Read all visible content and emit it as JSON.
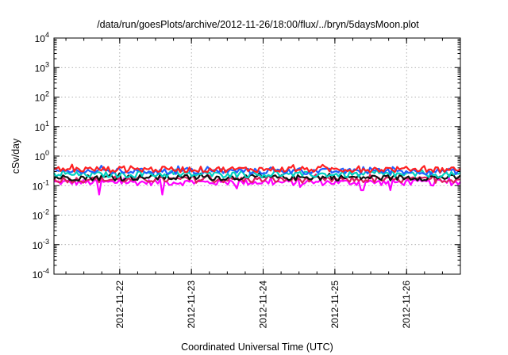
{
  "chart_data": {
    "type": "line",
    "title": "/data/run/goesPlots/archive/2012-11-26/18:00/flux/../bryn/5daysMoon.plot",
    "xlabel": "Coordinated Universal Time (UTC)",
    "ylabel": "cSv/day",
    "yscale": "log",
    "ylim": [
      0.0001,
      10000
    ],
    "y_ticks": [
      {
        "base": "10",
        "exp": "4",
        "value": 10000
      },
      {
        "base": "10",
        "exp": "3",
        "value": 1000
      },
      {
        "base": "10",
        "exp": "2",
        "value": 100
      },
      {
        "base": "10",
        "exp": "1",
        "value": 10
      },
      {
        "base": "10",
        "exp": "0",
        "value": 1
      },
      {
        "base": "10",
        "exp": "-1",
        "value": 0.1
      },
      {
        "base": "10",
        "exp": "-2",
        "value": 0.01
      },
      {
        "base": "10",
        "exp": "-3",
        "value": 0.001
      },
      {
        "base": "10",
        "exp": "-4",
        "value": 0.0001
      }
    ],
    "xlim": [
      "2012-11-21T02:00",
      "2012-11-26T18:00"
    ],
    "x_ticks": [
      "2012-11-22",
      "2012-11-23",
      "2012-11-24",
      "2012-11-25",
      "2012-11-26"
    ],
    "grid": true,
    "series": [
      {
        "color": "#ff00ff",
        "level": 0.13,
        "dips": [
          [
            0.62,
            0.05
          ],
          [
            1.52,
            0.05
          ],
          [
            2.55,
            0.08
          ],
          [
            3.42,
            0.09
          ],
          [
            4.3,
            0.07
          ],
          [
            4.68,
            0.07
          ],
          [
            5.3,
            0.1
          ]
        ]
      },
      {
        "color": "#e0205f",
        "level": 0.16,
        "dips": []
      },
      {
        "color": "#111111",
        "level": 0.19,
        "dips": []
      },
      {
        "color": "#00d0c0",
        "level": 0.24,
        "dips": []
      },
      {
        "color": "#2060ff",
        "level": 0.31,
        "dips": []
      },
      {
        "color": "#ff2020",
        "level": 0.36,
        "dips": []
      }
    ]
  }
}
